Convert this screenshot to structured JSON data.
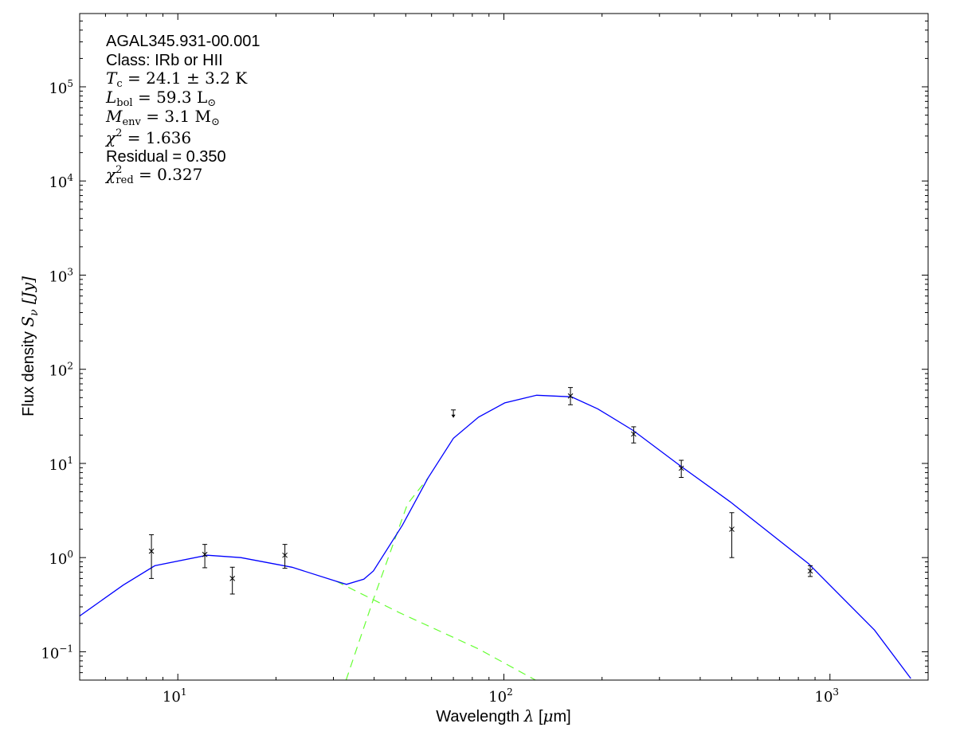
{
  "chart_data": {
    "type": "scatter",
    "xlabel": {
      "text": "Wavelength ",
      "sym": "λ",
      "unit_open": " [",
      "unit_sym": "μ",
      "unit_rest": "m]"
    },
    "ylabel": {
      "text": "Flux density ",
      "sym": "S",
      "sub": "ν",
      "unit": " [Jy]"
    },
    "xscale": "log",
    "yscale": "log",
    "xlim": [
      5,
      2000
    ],
    "ylim": [
      0.05,
      600000
    ],
    "xticks": [
      {
        "base": "10",
        "exp": "1",
        "value": 10
      },
      {
        "base": "10",
        "exp": "2",
        "value": 100
      },
      {
        "base": "10",
        "exp": "3",
        "value": 1000
      }
    ],
    "yticks": [
      {
        "base": "10",
        "exp": "−1",
        "value": 0.1
      },
      {
        "base": "10",
        "exp": "0",
        "value": 1
      },
      {
        "base": "10",
        "exp": "1",
        "value": 10
      },
      {
        "base": "10",
        "exp": "2",
        "value": 100
      },
      {
        "base": "10",
        "exp": "3",
        "value": 1000
      },
      {
        "base": "10",
        "exp": "4",
        "value": 10000
      },
      {
        "base": "10",
        "exp": "5",
        "value": 100000
      }
    ],
    "grid": false,
    "annotations": {
      "source": "AGAL345.931-00.001",
      "class": "Class: IRb or HII",
      "tc": {
        "sym": "T",
        "sub": "c",
        "rest": " = 24.1 ± 3.2 K"
      },
      "lbol": {
        "sym": "L",
        "sub": "bol",
        "rest": " = 59.3 L",
        "rest_sub": "⊙"
      },
      "menv": {
        "sym": "M",
        "sub": "env",
        "rest": " = 3.1 M",
        "rest_sub": "⊙"
      },
      "chi2": {
        "sym": "χ",
        "sup": "2",
        "rest": " = 1.636"
      },
      "residual": "Residual = 0.350",
      "chi2red": {
        "sym": "χ",
        "sup": "2",
        "sub": "red",
        "rest": " = 0.327"
      }
    },
    "points": [
      {
        "x": 8.3,
        "y": 1.17,
        "ylo": 0.6,
        "yhi": 1.75
      },
      {
        "x": 12.1,
        "y": 1.08,
        "ylo": 0.78,
        "yhi": 1.38
      },
      {
        "x": 14.7,
        "y": 0.6,
        "ylo": 0.41,
        "yhi": 0.79
      },
      {
        "x": 21.3,
        "y": 1.06,
        "ylo": 0.77,
        "yhi": 1.38
      },
      {
        "x": 160,
        "y": 52,
        "ylo": 42,
        "yhi": 64
      },
      {
        "x": 250,
        "y": 20.5,
        "ylo": 16.5,
        "yhi": 24.5
      },
      {
        "x": 350,
        "y": 8.9,
        "ylo": 7.1,
        "yhi": 10.8
      },
      {
        "x": 500,
        "y": 2.0,
        "ylo": 1.0,
        "yhi": 3.0
      },
      {
        "x": 870,
        "y": 0.72,
        "ylo": 0.63,
        "yhi": 0.82
      }
    ],
    "upper_limits": [
      {
        "x": 70,
        "y": 37
      }
    ],
    "series": [
      {
        "style": "total-model",
        "color": "#0000ff",
        "dash": false,
        "x": [
          5.0,
          6.8,
          8.5,
          12.3,
          15.6,
          22.4,
          30.6,
          32.9,
          37.2,
          39.8,
          48.8,
          58.5,
          70,
          83.6,
          100.6,
          126,
          161,
          194,
          249,
          348,
          495,
          860,
          1370,
          1770
        ],
        "y": [
          0.24,
          0.51,
          0.82,
          1.06,
          1.0,
          0.79,
          0.56,
          0.52,
          0.59,
          0.72,
          2.2,
          7.0,
          18.5,
          31,
          44,
          53,
          51,
          38,
          22.4,
          9.4,
          3.9,
          0.86,
          0.17,
          0.052
        ]
      },
      {
        "style": "cold-component",
        "color": "#66ff33",
        "dash": true,
        "x": [
          32.8,
          39.8,
          50.6,
          58.5
        ],
        "y": [
          0.05,
          0.36,
          3.7,
          7.0
        ]
      },
      {
        "style": "warm-component",
        "color": "#66ff33",
        "dash": true,
        "x": [
          30.6,
          47.8,
          83.6,
          125
        ],
        "y": [
          0.56,
          0.26,
          0.107,
          0.05
        ]
      }
    ]
  }
}
